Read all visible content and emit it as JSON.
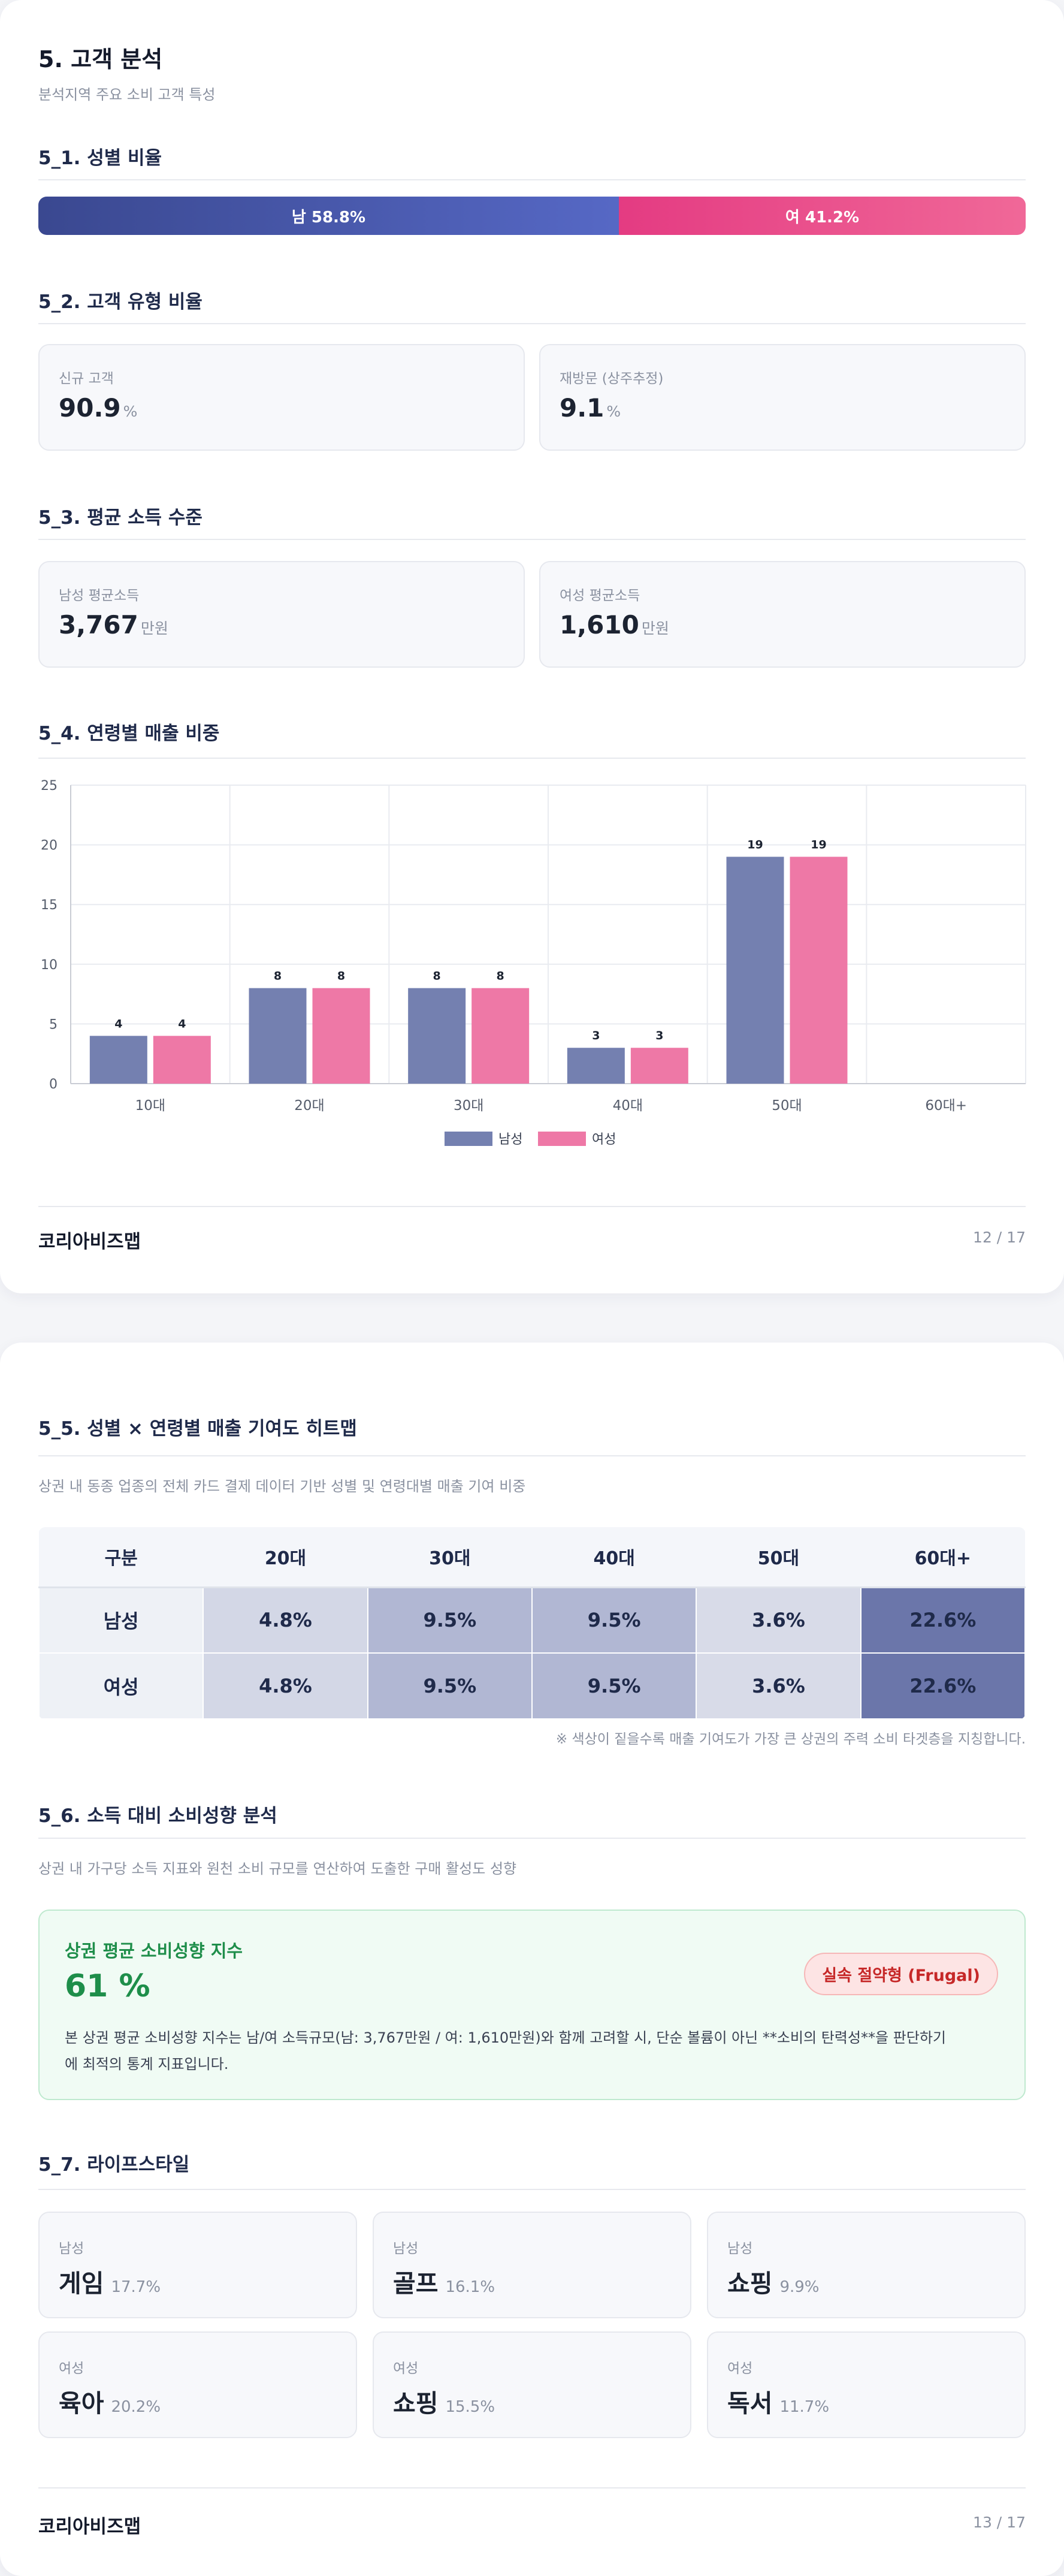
{
  "page1": {
    "title": "5. 고객 분석",
    "subtitle": "분석지역 주요 소비 고객 특성",
    "gender": {
      "heading": "5_1. 성별 비율",
      "male_label": "남 58.8%",
      "female_label": "여 41.2%",
      "male_ratio": 58.8,
      "female_ratio": 41.2,
      "male_color": "#3a4890",
      "female_color": "#e43b82"
    },
    "customer_type": {
      "heading": "5_2. 고객 유형 비율",
      "cards": [
        {
          "label": "신규 고객",
          "value": "90.9",
          "unit": "%"
        },
        {
          "label": "재방문 (상주추정)",
          "value": "9.1",
          "unit": "%"
        }
      ]
    },
    "income": {
      "heading": "5_3. 평균 소득 수준",
      "cards": [
        {
          "label": "남성 평균소득",
          "value": "3,767",
          "unit": "만원"
        },
        {
          "label": "여성 평균소득",
          "value": "1,610",
          "unit": "만원"
        }
      ]
    },
    "age_sales_heading": "5_4. 연령별 매출 비중",
    "footer": {
      "brand": "코리아비즈맵",
      "page": "12 / 17"
    }
  },
  "chart_data": {
    "type": "bar",
    "categories": [
      "10대",
      "20대",
      "30대",
      "40대",
      "50대",
      "60대+"
    ],
    "series": [
      {
        "name": "남성",
        "values": [
          4,
          8,
          8,
          3,
          19,
          0
        ],
        "color": "#7480b0"
      },
      {
        "name": "여성",
        "values": [
          4,
          8,
          8,
          3,
          19,
          0
        ],
        "color": "#ee78a6"
      }
    ],
    "data_labels": [
      [
        "4",
        "8",
        "8",
        "3",
        "19",
        ""
      ],
      [
        "4",
        "8",
        "8",
        "3",
        "19",
        ""
      ]
    ],
    "ylim": [
      0,
      25
    ],
    "yticks": [
      "0",
      "5",
      "10",
      "15",
      "20",
      "25"
    ],
    "grid": true,
    "legend_position": "bottom-center"
  },
  "page2": {
    "heatmap": {
      "heading": "5_5. 성별 × 연령별 매출 기여도 히트맵",
      "description": "상권 내 동종 업종의 전체 카드 결제 데이터 기반 성별 및 연령대별 매출 기여 비중",
      "columns": [
        "구분",
        "20대",
        "30대",
        "40대",
        "50대",
        "60대+"
      ],
      "rows": [
        {
          "label": "남성",
          "cells": [
            "4.8%",
            "9.5%",
            "9.5%",
            "3.6%",
            "22.6%"
          ]
        },
        {
          "label": "여성",
          "cells": [
            "4.8%",
            "9.5%",
            "9.5%",
            "3.6%",
            "22.6%"
          ]
        }
      ],
      "cell_colors": [
        "#d3d7e6",
        "#b1b7d3",
        "#b1b7d3",
        "#d8dbe8",
        "#6b76aa"
      ],
      "note": "※ 색상이 짙을수록 매출 기여도가 가장 큰 상권의 주력 소비 타겟층을 지칭합니다."
    },
    "propensity": {
      "heading": "5_6. 소득 대비 소비성향 분석",
      "description": "상권 내 가구당 소득 지표와 원천 소비 규모를 연산하여 도출한 구매 활성도 성향",
      "card_title": "상권 평균 소비성향 지수",
      "value": "61 %",
      "badge": "실속 절약형 (Frugal)",
      "body_line1": "본 상권 평균 소비성향 지수는 남/여 소득규모(남: 3,767만원 / 여: 1,610만원)와 함께 고려할 시, 단순 볼륨이 아닌 **소비의 탄력성**을 판단하기",
      "body_line2": "에 최적의 통계 지표입니다."
    },
    "lifestyle": {
      "heading": "5_7. 라이프스타일",
      "items": [
        {
          "gender": "남성",
          "name": "게임",
          "pct": "17.7%"
        },
        {
          "gender": "남성",
          "name": "골프",
          "pct": "16.1%"
        },
        {
          "gender": "남성",
          "name": "쇼핑",
          "pct": "9.9%"
        },
        {
          "gender": "여성",
          "name": "육아",
          "pct": "20.2%"
        },
        {
          "gender": "여성",
          "name": "쇼핑",
          "pct": "15.5%"
        },
        {
          "gender": "여성",
          "name": "독서",
          "pct": "11.7%"
        }
      ]
    },
    "footer": {
      "brand": "코리아비즈맵",
      "page": "13 / 17"
    }
  }
}
